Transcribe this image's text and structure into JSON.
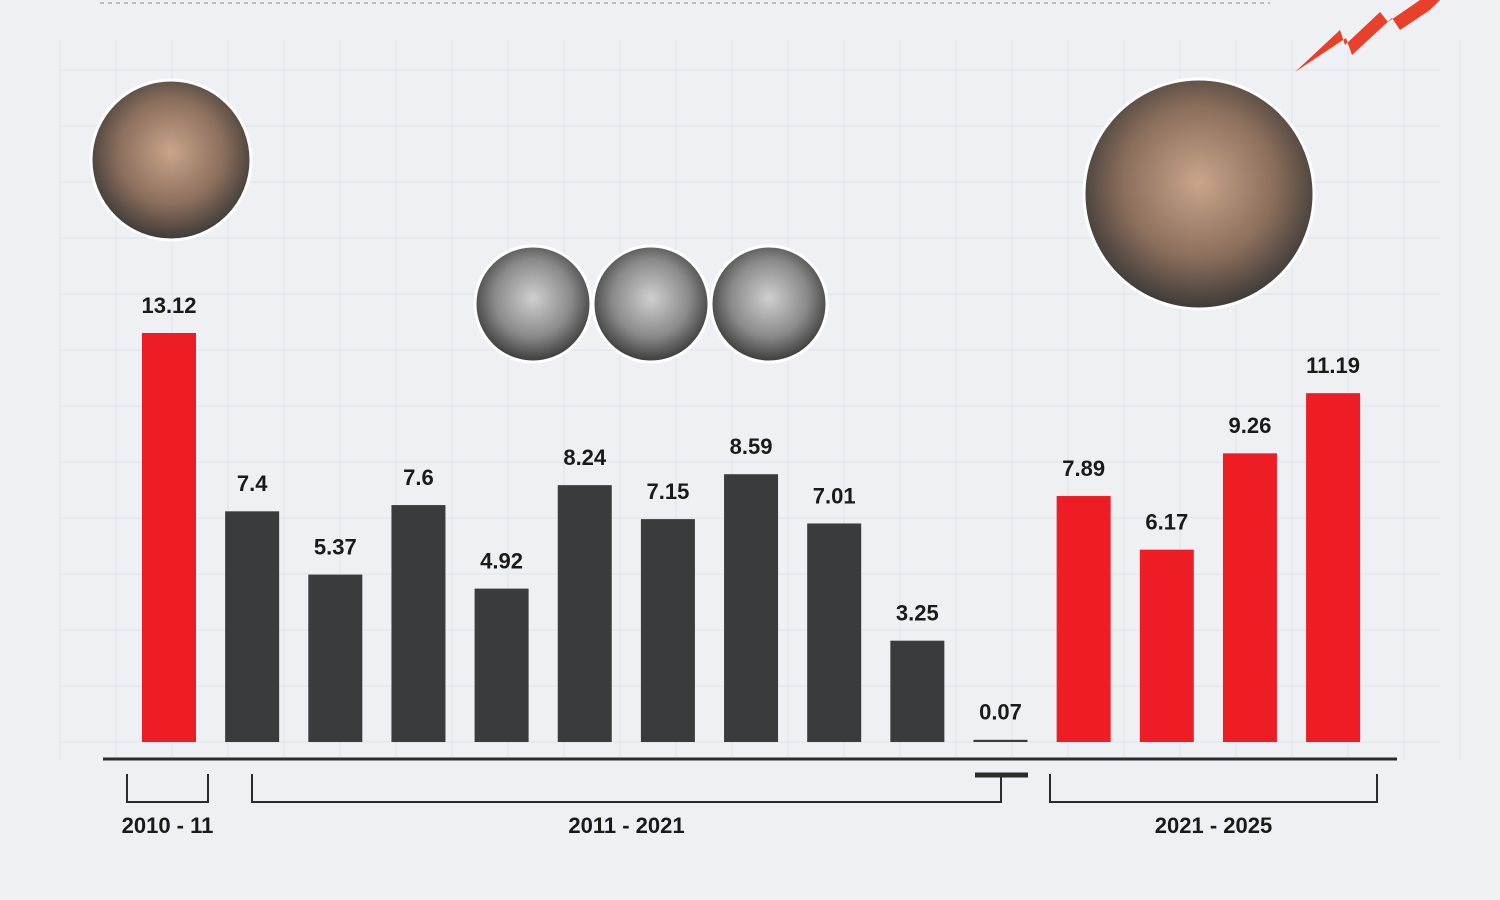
{
  "chart_data": {
    "type": "bar",
    "categories": [
      null,
      null,
      null,
      null,
      null,
      null,
      null,
      null,
      null,
      null,
      null,
      null,
      null,
      null,
      null
    ],
    "values": [
      13.12,
      7.4,
      5.37,
      7.6,
      4.92,
      8.24,
      7.15,
      8.59,
      7.01,
      3.25,
      0.07,
      7.89,
      6.17,
      9.26,
      11.19
    ],
    "colors": [
      "#ee1c25",
      "#3a3b3d",
      "#3a3b3d",
      "#3a3b3d",
      "#3a3b3d",
      "#3a3b3d",
      "#3a3b3d",
      "#3a3b3d",
      "#3a3b3d",
      "#3a3b3d",
      "#3a3b3d",
      "#ee1c25",
      "#ee1c25",
      "#ee1c25",
      "#ee1c25"
    ],
    "groups": [
      {
        "label": "2010 - 11"
      },
      {
        "label": "2011 - 2021"
      },
      {
        "label": "2021 - 2025"
      }
    ]
  }
}
